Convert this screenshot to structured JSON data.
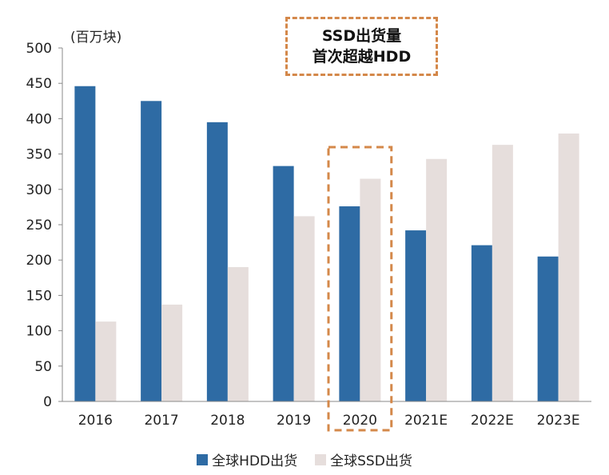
{
  "chart_data": {
    "type": "bar",
    "unit_label": "(百万块)",
    "categories": [
      "2016",
      "2017",
      "2018",
      "2019",
      "2020",
      "2021E",
      "2022E",
      "2023E"
    ],
    "series": [
      {
        "name": "全球HDD出货",
        "color": "#2E6BA4",
        "values": [
          446,
          425,
          395,
          333,
          276,
          242,
          221,
          205
        ]
      },
      {
        "name": "全球SSD出货",
        "color": "#E6DEDC",
        "values": [
          113,
          137,
          190,
          262,
          315,
          343,
          363,
          379
        ]
      }
    ],
    "ylim": [
      0,
      500
    ],
    "yticks": [
      0,
      50,
      100,
      150,
      200,
      250,
      300,
      350,
      400,
      450,
      500
    ],
    "highlight_category": "2020",
    "highlight_color": "#D4884A",
    "annotation": {
      "lines": [
        "SSD出货量",
        "首次超越HDD"
      ]
    },
    "legend_position": "bottom",
    "grid": false
  }
}
